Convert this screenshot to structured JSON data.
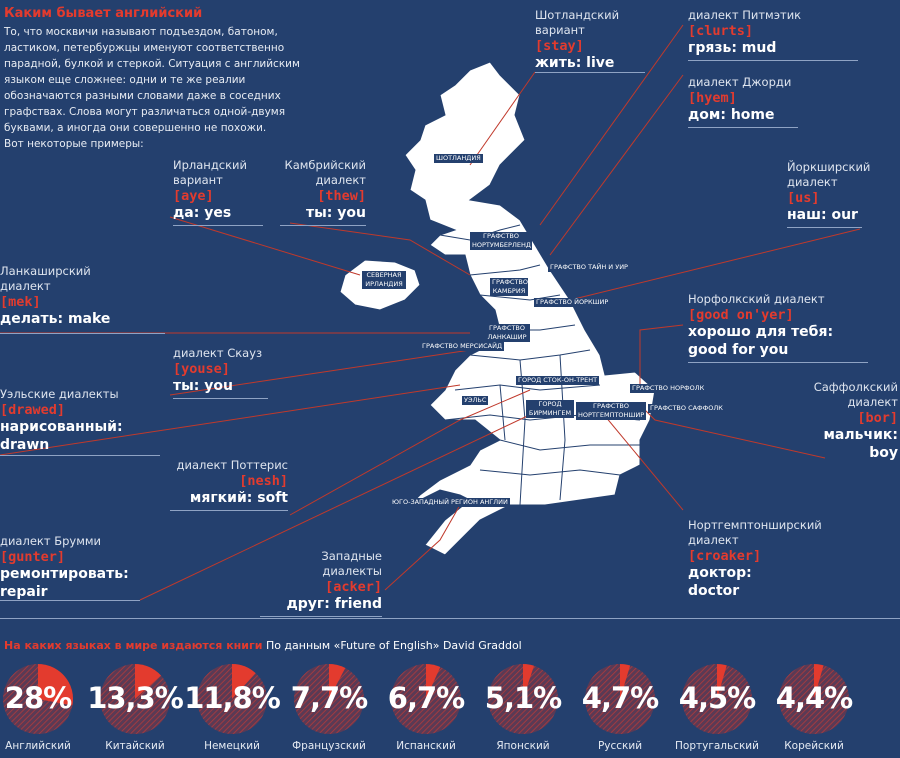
{
  "title": "Каким бывает английский",
  "intro": [
    "То, что москвичи называют подъездом, батоном,",
    "ластиком, петербуржцы именуют соответственно",
    "парадной, булкой и стеркой. Ситуация с английским",
    "языком еще сложнее: одни и те же реалии",
    "обозначаются разными словами даже в соседних",
    "графствах. Слова могут различаться одной-двумя",
    "буквами, а иногда они совершенно не похожи.",
    "Вот некоторые примеры:"
  ],
  "dialects": [
    {
      "caption": [
        "Шотландский",
        "вариант"
      ],
      "word": "[stay]",
      "translation": "жить: live"
    },
    {
      "caption": [
        "диалект Питмэтик"
      ],
      "word": "[clurts]",
      "translation": "грязь: mud"
    },
    {
      "caption": [
        "диалект Джорди"
      ],
      "word": "[hyem]",
      "translation": "дом: home"
    },
    {
      "caption": [
        "Ирландский",
        "вариант"
      ],
      "word": "[aye]",
      "translation": "да: yes"
    },
    {
      "caption": [
        "Камбрийский",
        "диалект"
      ],
      "word": "[thew]",
      "translation": "ты: you"
    },
    {
      "caption": [
        "Йоркширский",
        "диалект"
      ],
      "word": "[us]",
      "translation": "наш: our"
    },
    {
      "caption": [
        "Ланкаширский",
        "диалект"
      ],
      "word": "[mek]",
      "translation": "делать: make"
    },
    {
      "caption": [
        "Норфолкский диалект"
      ],
      "word": "[good on'yer]",
      "translation": "хорошо для тебя:",
      "translation2": "good for you"
    },
    {
      "caption": [
        "диалект Скауз"
      ],
      "word": "[youse]",
      "translation": "ты: you"
    },
    {
      "caption": [
        "Уэльские диалекты"
      ],
      "word": "[drawed]",
      "translation": "нарисованный:",
      "translation2": "drawn"
    },
    {
      "caption": [
        "Саффолкский",
        "диалект"
      ],
      "word": "[bor]",
      "translation": "мальчик:",
      "translation2": "boy"
    },
    {
      "caption": [
        "диалект Поттерис"
      ],
      "word": "[nesh]",
      "translation": "мягкий: soft"
    },
    {
      "caption": [
        "Нортгемптонширский",
        "диалект"
      ],
      "word": "[croaker]",
      "translation": "доктор:",
      "translation2": "doctor"
    },
    {
      "caption": [
        "диалект Брумми"
      ],
      "word": "[gunter]",
      "translation": "ремонтировать:",
      "translation2": "repair"
    },
    {
      "caption": [
        "Западные диалекты"
      ],
      "word": "[acker]",
      "translation": "друг: friend"
    }
  ],
  "regions": [
    "ШОТЛАНДИЯ",
    "ГРАФСТВО НОРТУМБЕРЛЕНД",
    "ГРАФСТВО ТАЙН И УИР",
    "СЕВЕРНАЯ ИРЛАНДИЯ",
    "ГРАФСТВО КАМБРИЯ",
    "ГРАФСТВО ЙОРКШИР",
    "ГРАФСТВО ЛАНКАШИР",
    "ГРАФСТВО МЕРСИСАЙД",
    "ГОРОД СТОК-ОН-ТРЕНТ",
    "ГРАФСТВО НОРФОЛК",
    "УЭЛЬС",
    "ГОРОД БИРМИНГЕМ",
    "ГРАФСТВО НОРТГЕМПТОНШИР",
    "ГРАФСТВО САФФОЛК",
    "ЮГО-ЗАПАДНЫЙ РЕГИОН АНГЛИИ"
  ],
  "stats": {
    "title": "На каких языках в мире издаются книги",
    "source": "По данным «Future of English» David Graddol",
    "items": [
      {
        "pct": "28%",
        "value": 28,
        "lang": "Английский"
      },
      {
        "pct": "13,3%",
        "value": 13.3,
        "lang": "Китайский"
      },
      {
        "pct": "11,8%",
        "value": 11.8,
        "lang": "Немецкий"
      },
      {
        "pct": "7,7%",
        "value": 7.7,
        "lang": "Французский"
      },
      {
        "pct": "6,7%",
        "value": 6.7,
        "lang": "Испанский"
      },
      {
        "pct": "5,1%",
        "value": 5.1,
        "lang": "Японский"
      },
      {
        "pct": "4,7%",
        "value": 4.7,
        "lang": "Русский"
      },
      {
        "pct": "4,5%",
        "value": 4.5,
        "lang": "Португальский"
      },
      {
        "pct": "4,4%",
        "value": 4.4,
        "lang": "Корейский"
      }
    ]
  },
  "colors": {
    "background": "#24406e",
    "accent": "#e33b2e",
    "land": "#ffffff"
  }
}
